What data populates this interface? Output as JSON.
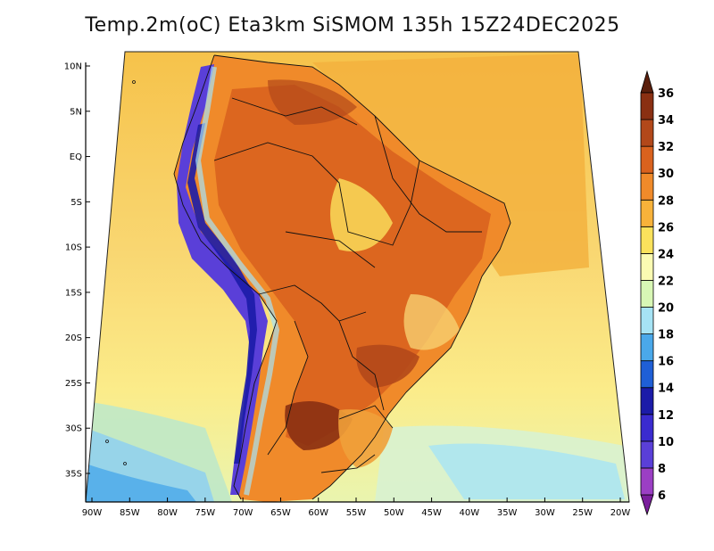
{
  "title": "Temp.2m(oC) Eta3km SiSMOM 135h 15Z24DEC2025",
  "lat_labels": [
    "10N",
    "5N",
    "EQ",
    "5S",
    "10S",
    "15S",
    "20S",
    "25S",
    "30S",
    "35S"
  ],
  "lon_labels": [
    "90W",
    "85W",
    "80W",
    "75W",
    "70W",
    "65W",
    "60W",
    "55W",
    "50W",
    "45W",
    "40W",
    "35W",
    "30W",
    "25W",
    "20W"
  ],
  "colorbar": {
    "labels": [
      "6",
      "8",
      "10",
      "12",
      "14",
      "16",
      "18",
      "20",
      "22",
      "24",
      "26",
      "28",
      "30",
      "32",
      "34",
      "36"
    ],
    "colors": [
      "#7a1e9c",
      "#9b3fc4",
      "#5a3fd8",
      "#3a2bcf",
      "#1b1ba8",
      "#1f5fd6",
      "#4aa8ea",
      "#a6e3f5",
      "#d8f7b5",
      "#fbfbb2",
      "#fbe25c",
      "#f8b23a",
      "#f08a2a",
      "#d9621e",
      "#b2481a",
      "#8a3012",
      "#5a1f0c"
    ]
  },
  "colors": {
    "ocean_north": "#f7d060",
    "ocean_south": "#fbec8a",
    "land_hot": "#d9621e",
    "land_warm": "#f08a2a",
    "andes": "#5a3fd8"
  }
}
